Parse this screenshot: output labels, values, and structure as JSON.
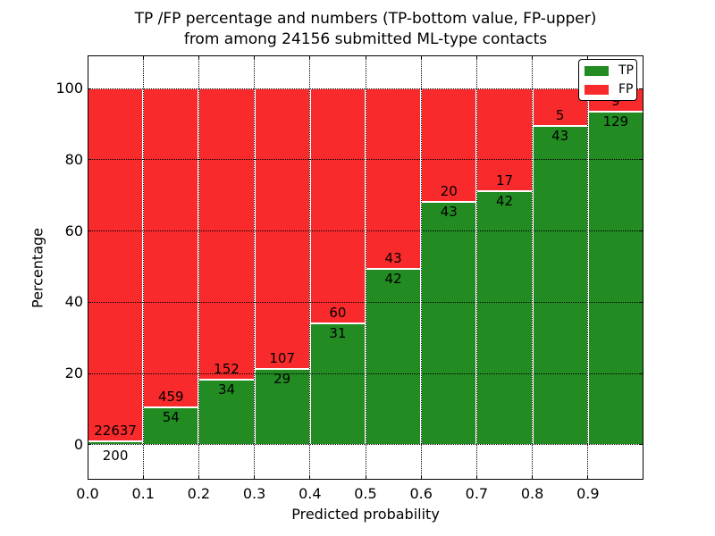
{
  "figure": {
    "title_line1": "TP /FP percentage and numbers (TP-bottom value, FP-upper)",
    "title_line2": "from among 24156 submitted ML-type contacts"
  },
  "chart_data": {
    "type": "bar",
    "variant": "stacked-percentage",
    "title": "TP /FP percentage and numbers (TP-bottom value, FP-upper) from among 24156 submitted ML-type contacts",
    "total_submitted_contacts": 24156,
    "xlabel": "Predicted probability",
    "ylabel": "Percentage",
    "xlim": [
      0.0,
      1.0
    ],
    "ylim_percent": [
      -9.8,
      109.3
    ],
    "bin_width": 0.1,
    "bin_starts": [
      0.0,
      0.1,
      0.2,
      0.3,
      0.4,
      0.5,
      0.6,
      0.7,
      0.8,
      0.9
    ],
    "xtick_labels": [
      "0.0",
      "0.1",
      "0.2",
      "0.3",
      "0.4",
      "0.5",
      "0.6",
      "0.7",
      "0.8",
      "0.9"
    ],
    "ytick_values": [
      0,
      20,
      40,
      60,
      80,
      100
    ],
    "grid": "dotted",
    "series": [
      {
        "name": "TP",
        "color": "#228B22",
        "counts": [
          200,
          54,
          34,
          29,
          31,
          42,
          43,
          42,
          43,
          129
        ]
      },
      {
        "name": "FP",
        "color": "#F92A2B",
        "counts": [
          22637,
          459,
          152,
          107,
          60,
          43,
          20,
          17,
          5,
          9
        ]
      }
    ],
    "tp_percent_by_bin": [
      0.88,
      10.53,
      18.28,
      21.32,
      34.07,
      49.41,
      68.25,
      71.19,
      89.58,
      93.48
    ],
    "legend": {
      "position": "upper-right",
      "entries": [
        {
          "label": "TP",
          "color": "#228B22"
        },
        {
          "label": "FP",
          "color": "#F92A2B"
        }
      ]
    }
  }
}
